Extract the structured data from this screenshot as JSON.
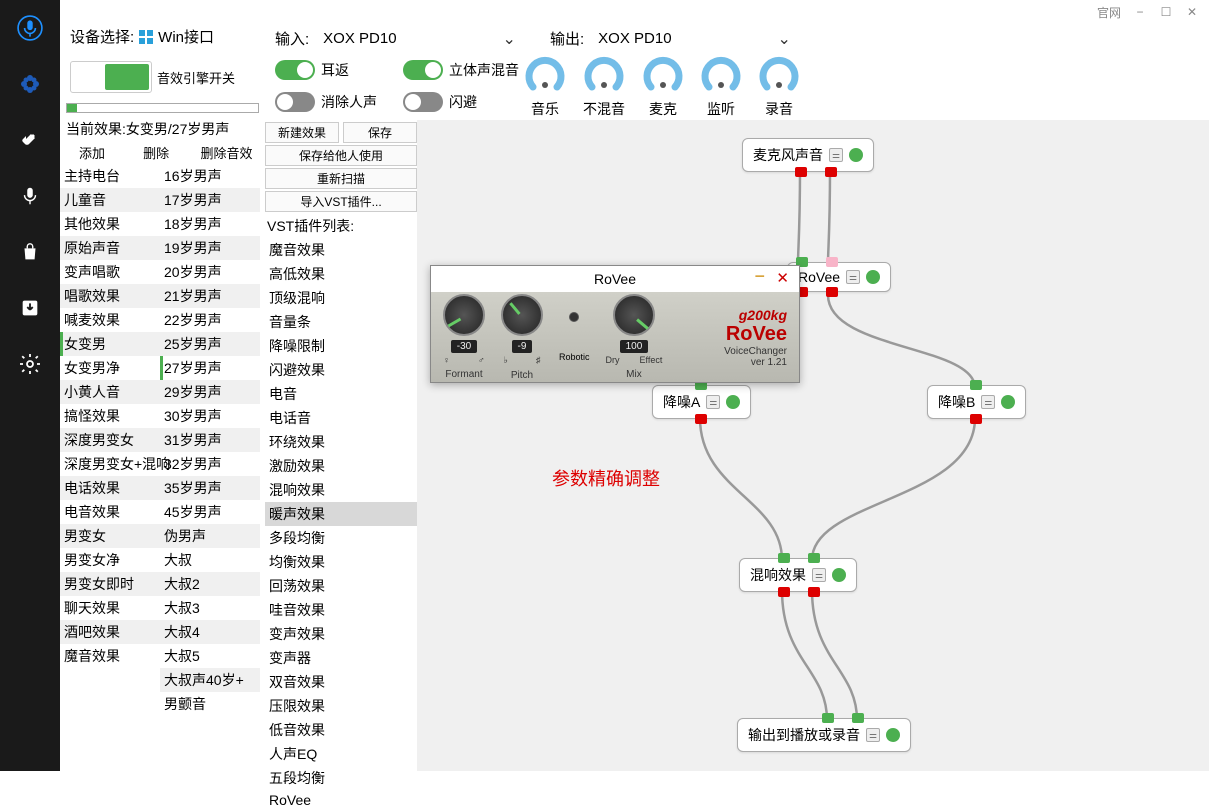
{
  "titlebar": {
    "link": "官网"
  },
  "header": {
    "device_label": "设备选择:",
    "device_value": "Win接口",
    "input_label": "输入:",
    "input_value": "XOX PD10",
    "output_label": "输出:",
    "output_value": "XOX PD10"
  },
  "engine": {
    "label": "音效引擎开关"
  },
  "breadcrumb": "当前效果:女变男/27岁男声",
  "cols_hdr": {
    "add": "添加",
    "del": "删除",
    "del_sfx": "删除音效"
  },
  "effects_left": [
    "主持电台",
    "儿童音",
    "其他效果",
    "原始声音",
    "变声唱歌",
    "唱歌效果",
    "喊麦效果",
    "女变男",
    "女变男净",
    "小黄人音",
    "搞怪效果",
    "深度男变女",
    "深度男变女+混响",
    "电话效果",
    "电音效果",
    "男变女",
    "男变女净",
    "男变女即时",
    "聊天效果",
    "酒吧效果",
    "魔音效果"
  ],
  "effects_left_selected": 7,
  "effects_right": [
    "16岁男声",
    "17岁男声",
    "18岁男声",
    "19岁男声",
    "20岁男声",
    "21岁男声",
    "22岁男声",
    "25岁男声",
    "27岁男声",
    "29岁男声",
    "30岁男声",
    "31岁男声",
    "32岁男声",
    "35岁男声",
    "45岁男声",
    "伪男声",
    "大叔",
    "大叔2",
    "大叔3",
    "大叔4",
    "大叔5",
    "大叔声40岁+",
    "男颤音"
  ],
  "effects_right_selected": 8,
  "switches": {
    "earback": "耳返",
    "stereo": "立体声混音",
    "devoice": "消除人声",
    "duck": "闪避"
  },
  "knobs": [
    "音乐",
    "不混音",
    "麦克",
    "监听",
    "录音"
  ],
  "btns": {
    "new": "新建效果",
    "save": "保存",
    "save_others": "保存给他人使用",
    "rescan": "重新扫描",
    "import_vst": "导入VST插件..."
  },
  "vst_label": "VST插件列表:",
  "vst_list": [
    "魔音效果",
    "高低效果",
    "顶级混响",
    "音量条",
    "降噪限制",
    "闪避效果",
    "电音",
    "电话音",
    "环绕效果",
    "激励效果",
    "混响效果",
    "暖声效果",
    "多段均衡",
    "均衡效果",
    "回荡效果",
    "哇音效果",
    "变声效果",
    "变声器",
    "双音效果",
    "压限效果",
    "低音效果",
    "人声EQ",
    "五段均衡",
    "RoVee"
  ],
  "vst_highlight": 11,
  "nodes": {
    "mic": "麦克风声音",
    "rovee": "RoVee",
    "denoiseA": "降噪A",
    "denoiseB": "降噪B",
    "reverb": "混响效果",
    "output": "输出到播放或录音"
  },
  "redtext": "参数精确调整",
  "rovee": {
    "title": "RoVee",
    "brand_top": "g200kg",
    "brand": "RoVee",
    "sub1": "VoiceChanger",
    "sub2": "ver 1.21",
    "k1": {
      "val": "-30",
      "lbl": "Formant",
      "angle": -120
    },
    "k2": {
      "val": "-9",
      "lbl": "Pitch",
      "angle": -40
    },
    "k3": {
      "val": "100",
      "lbl2": "Mix",
      "lbl1l": "Dry",
      "lbl1r": "Effect",
      "angle": 130
    },
    "robotic": "Robotic"
  },
  "colors": {
    "green": "#4caf50",
    "red": "#d00",
    "blue": "#73bde8",
    "wire": "#999"
  }
}
